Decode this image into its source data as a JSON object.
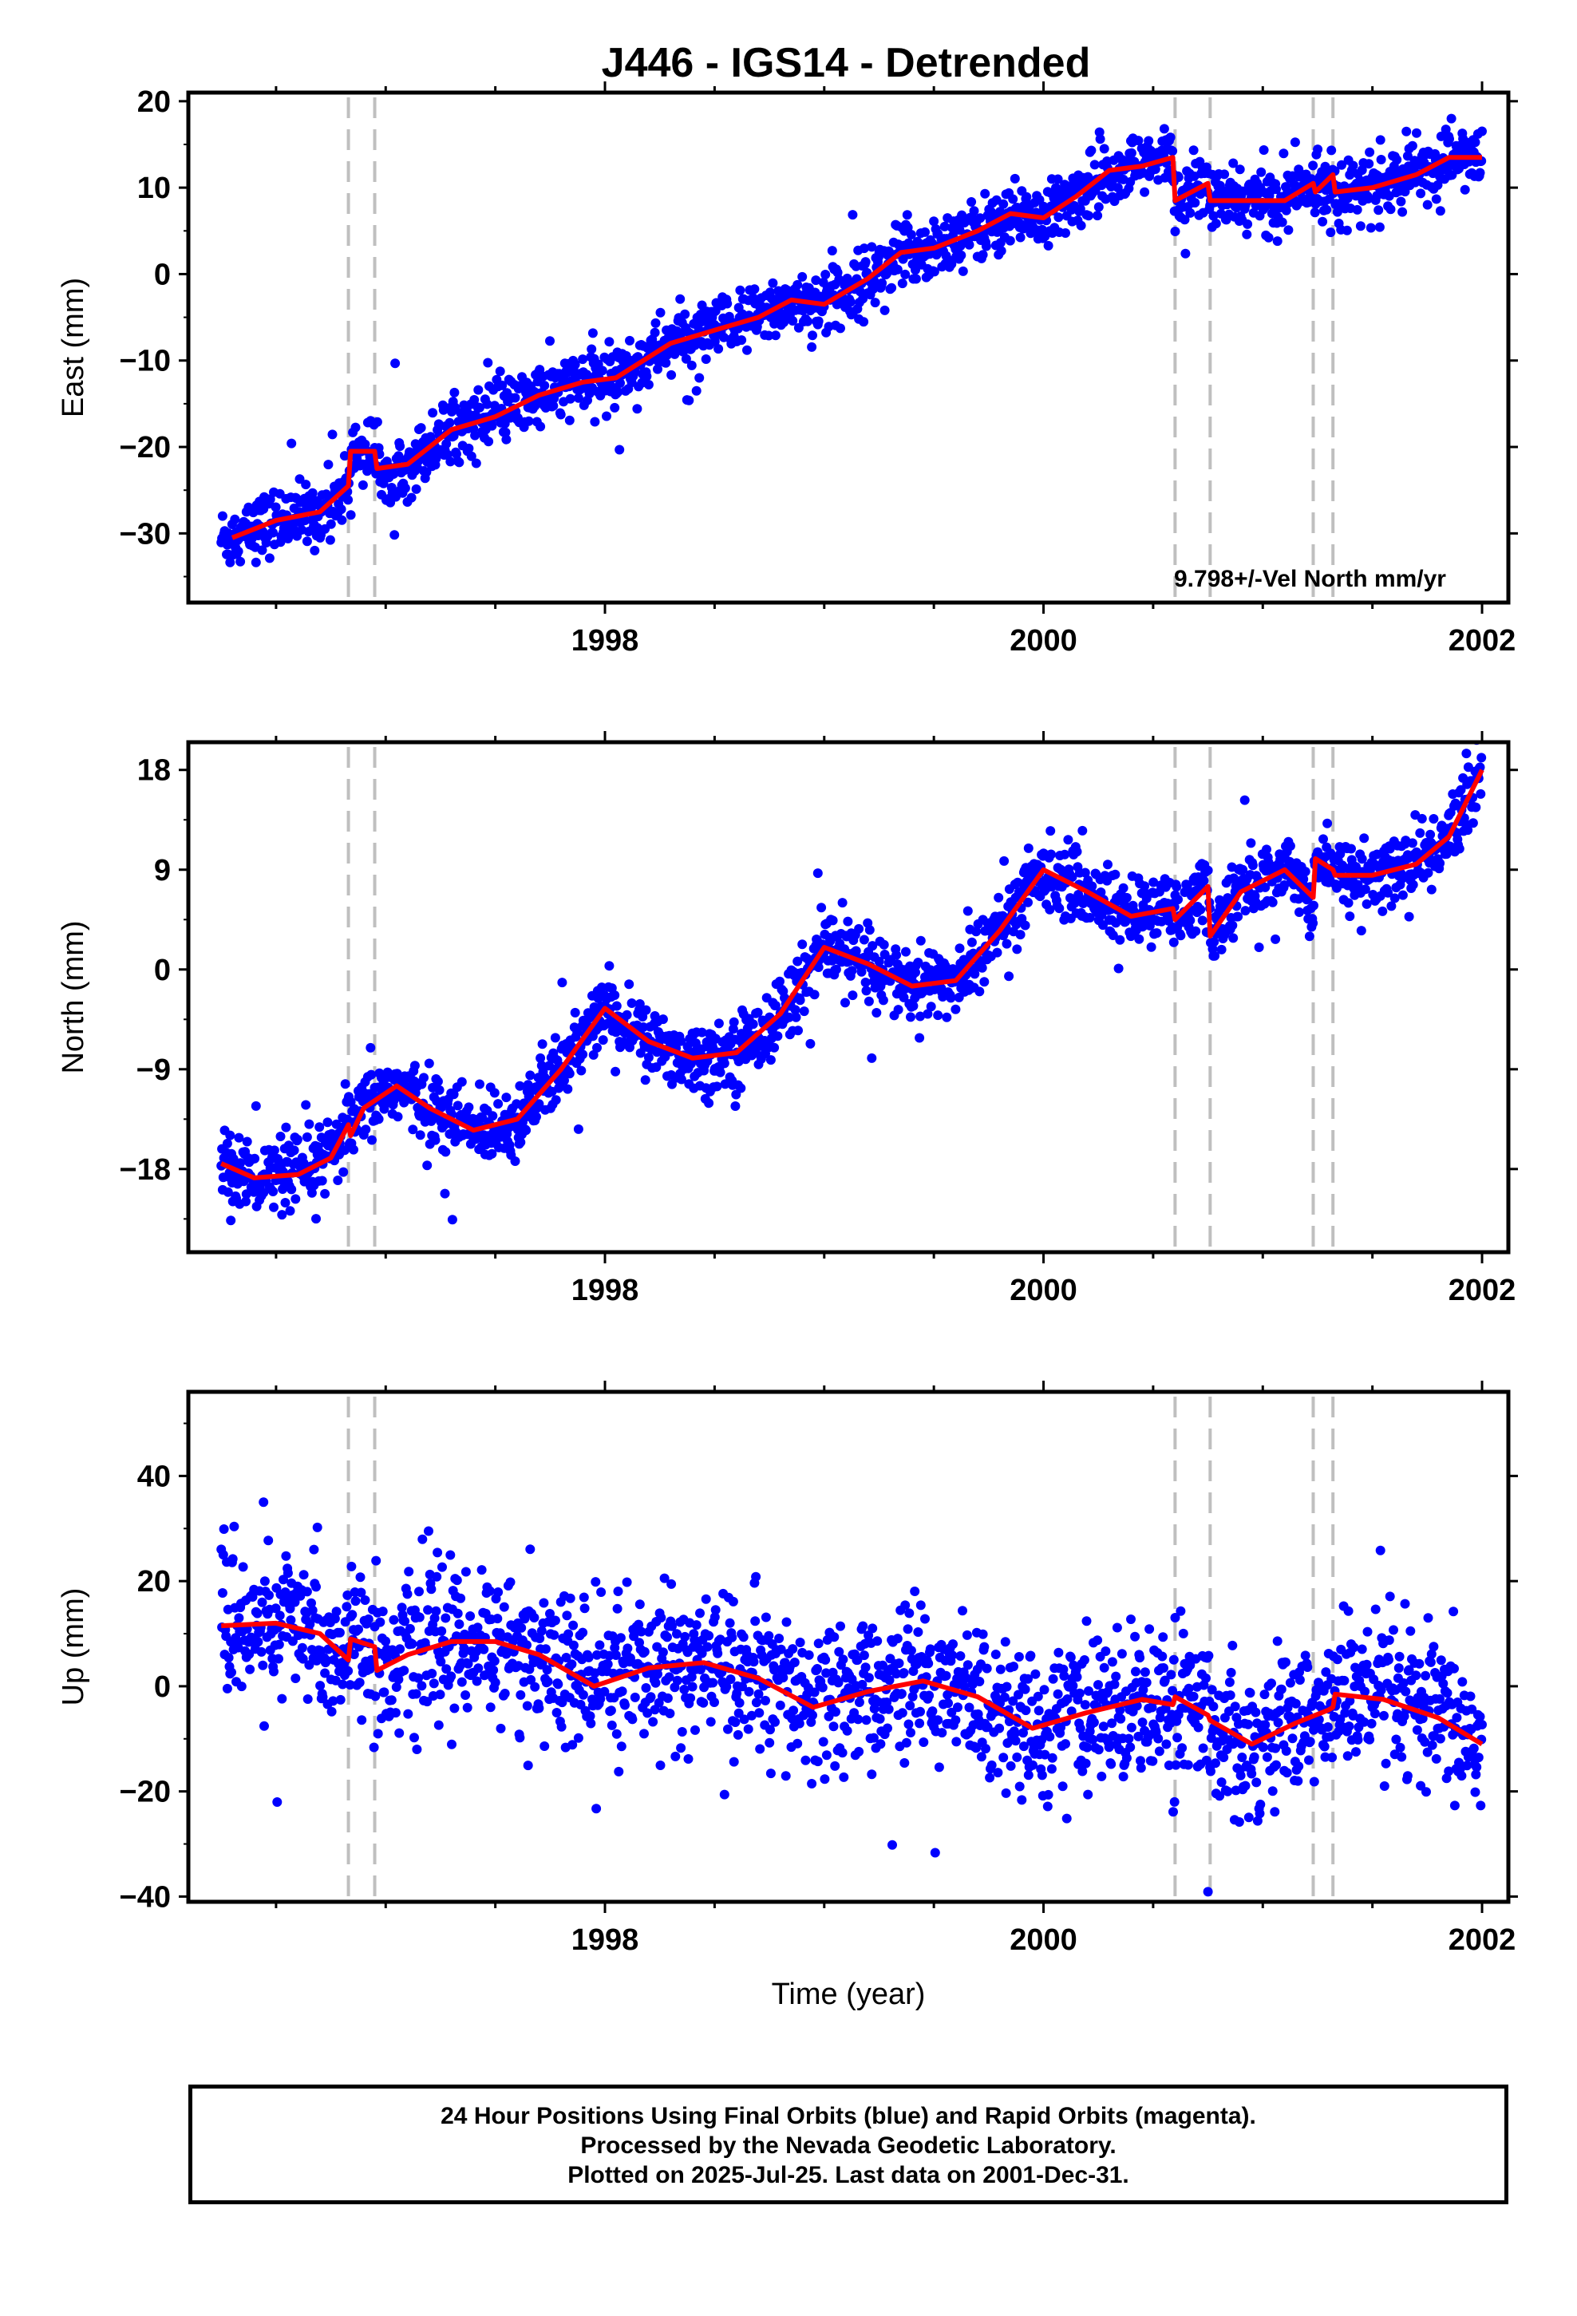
{
  "chart_data": [
    {
      "type": "scatter",
      "title": "J446 - IGS14 - Detrended",
      "ylabel": "East (mm)",
      "xlabel": "",
      "xlim": [
        1996.1,
        2002.12
      ],
      "ylim": [
        -38,
        21
      ],
      "yticks": [
        -30,
        -20,
        -10,
        0,
        10,
        20
      ],
      "xticks": [
        1998,
        2000,
        2002
      ],
      "annotation": "9.798+/-Vel North mm/yr",
      "scatter": {
        "points": 1850,
        "scatter_sd": 1.8
      },
      "series": [
        {
          "name": "",
          "kind": "model",
          "color": "#ff0000",
          "x": [
            1996.3,
            1996.5,
            1996.7,
            1996.83,
            1996.84,
            1996.95,
            1996.96,
            1997.1,
            1997.3,
            1997.5,
            1997.7,
            1997.9,
            1998.05,
            1998.3,
            1998.5,
            1998.7,
            1998.85,
            1999.0,
            1999.2,
            1999.35,
            1999.5,
            1999.7,
            1999.85,
            2000.0,
            2000.15,
            2000.3,
            2000.45,
            2000.59,
            2000.6,
            2000.75,
            2000.76,
            2000.9,
            2001.1,
            2001.23,
            2001.24,
            2001.32,
            2001.33,
            2001.5,
            2001.7,
            2001.85,
            2002.0
          ],
          "y": [
            -30.5,
            -28.5,
            -27.5,
            -24.5,
            -20.5,
            -20.5,
            -22.5,
            -22.0,
            -18.0,
            -16.5,
            -14.0,
            -12.5,
            -12.0,
            -8.0,
            -6.5,
            -5.0,
            -3.0,
            -3.5,
            -0.5,
            2.5,
            3.0,
            5.0,
            7.0,
            6.5,
            9.0,
            12.0,
            12.5,
            13.5,
            8.5,
            10.5,
            8.5,
            8.5,
            8.5,
            10.5,
            9.5,
            11.5,
            9.5,
            10.0,
            11.5,
            13.5,
            13.5
          ]
        }
      ]
    },
    {
      "type": "scatter",
      "title": "",
      "ylabel": "North (mm)",
      "xlabel": "",
      "xlim": [
        1996.1,
        2002.12
      ],
      "ylim": [
        -25.5,
        20.5
      ],
      "yticks": [
        -18,
        -9,
        0,
        9,
        18
      ],
      "xticks": [
        1998,
        2000,
        2002
      ],
      "scatter": {
        "points": 1850,
        "scatter_sd": 1.6
      },
      "series": [
        {
          "name": "",
          "kind": "model",
          "color": "#ff0000",
          "x": [
            1996.25,
            1996.4,
            1996.6,
            1996.75,
            1996.83,
            1996.84,
            1996.9,
            1997.05,
            1997.2,
            1997.4,
            1997.6,
            1997.8,
            1998.0,
            1998.2,
            1998.4,
            1998.6,
            1998.8,
            1999.0,
            1999.2,
            1999.4,
            1999.6,
            1999.8,
            2000.0,
            2000.2,
            2000.4,
            2000.59,
            2000.6,
            2000.75,
            2000.76,
            2000.9,
            2001.1,
            2001.23,
            2001.24,
            2001.32,
            2001.33,
            2001.5,
            2001.7,
            2001.85,
            2002.0
          ],
          "y": [
            -17.5,
            -18.8,
            -18.5,
            -17.0,
            -14.0,
            -15.0,
            -12.5,
            -10.5,
            -12.5,
            -14.5,
            -13.5,
            -9.0,
            -3.5,
            -6.5,
            -8.0,
            -7.5,
            -4.0,
            2.0,
            0.5,
            -1.5,
            -1.0,
            3.5,
            9.0,
            7.0,
            4.8,
            5.5,
            4.5,
            7.5,
            3.0,
            7.0,
            9.0,
            6.5,
            10.0,
            9.0,
            8.5,
            8.5,
            9.5,
            12.0,
            18.0
          ]
        }
      ]
    },
    {
      "type": "scatter",
      "title": "",
      "ylabel": "Up (mm)",
      "xlabel": "Time (year)",
      "xlim": [
        1996.1,
        2002.12
      ],
      "ylim": [
        -41,
        56
      ],
      "yticks": [
        -40,
        -20,
        0,
        20,
        40
      ],
      "xticks": [
        1998,
        2000,
        2002
      ],
      "scatter": {
        "points": 1850,
        "scatter_sd": 7.0
      },
      "series": [
        {
          "name": "",
          "kind": "model",
          "color": "#ff0000",
          "x": [
            1996.25,
            1996.5,
            1996.7,
            1996.83,
            1996.84,
            1996.95,
            1996.96,
            1997.1,
            1997.3,
            1997.5,
            1997.7,
            1997.95,
            1998.2,
            1998.45,
            1998.7,
            1998.95,
            1999.2,
            1999.45,
            1999.7,
            1999.95,
            2000.2,
            2000.45,
            2000.59,
            2000.6,
            2000.75,
            2000.76,
            2000.95,
            2001.15,
            2001.3,
            2001.32,
            2001.33,
            2001.55,
            2001.8,
            2002.0
          ],
          "y": [
            11.5,
            12.0,
            10.0,
            5.0,
            9.0,
            7.5,
            3.0,
            6.0,
            8.5,
            8.5,
            6.0,
            0.0,
            3.5,
            4.5,
            1.5,
            -4.0,
            -1.0,
            1.0,
            -2.0,
            -8.0,
            -5.0,
            -2.5,
            -3.5,
            -2.0,
            -5.5,
            -6.5,
            -11.0,
            -7.0,
            -4.5,
            -4.0,
            -1.5,
            -2.5,
            -6.0,
            -11.0
          ]
        }
      ]
    }
  ],
  "steps": [
    1996.83,
    1996.95,
    2000.6,
    2000.76,
    2001.23,
    2001.32
  ],
  "footer": {
    "line1": "24 Hour Positions Using Final Orbits (blue) and Rapid Orbits (magenta).",
    "line2": "Processed by the Nevada Geodetic Laboratory.",
    "line3": "Plotted on 2025-Jul-25. Last data on 2001-Dec-31."
  },
  "colors": {
    "points": "#0000ff",
    "model": "#ff0000",
    "steps": "#bfbfbf",
    "frame": "#000000"
  }
}
